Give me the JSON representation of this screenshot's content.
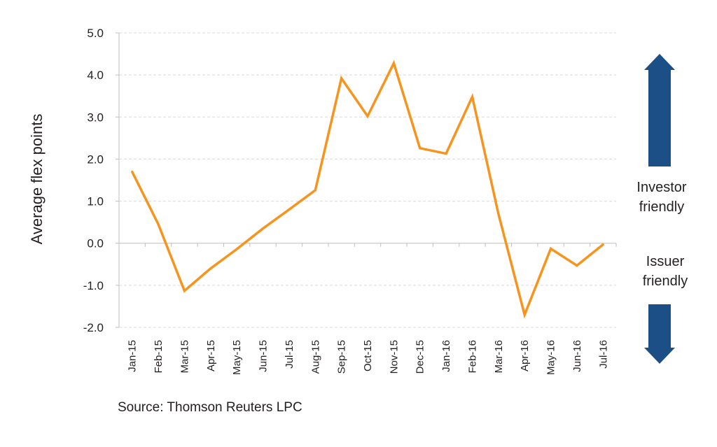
{
  "chart_data": {
    "type": "line",
    "categories": [
      "Jan-15",
      "Feb-15",
      "Mar-15",
      "Apr-15",
      "May-15",
      "Jun-15",
      "Jul-15",
      "Aug-15",
      "Sep-15",
      "Oct-15",
      "Nov-15",
      "Dec-15",
      "Jan-16",
      "Feb-16",
      "Mar-16",
      "Apr-16",
      "May-16",
      "Jun-16",
      "Jul-16"
    ],
    "series": [
      {
        "values": [
          1.7,
          0.45,
          -1.13,
          -0.6,
          -0.14,
          0.35,
          0.8,
          1.26,
          3.92,
          3.02,
          4.28,
          2.26,
          2.13,
          3.48,
          0.7,
          -1.7,
          -0.13,
          -0.53,
          -0.03
        ],
        "color": "#f7941d"
      }
    ],
    "ylabel": "Average flex points",
    "xlabel": "",
    "ylim": [
      -2.0,
      5.0
    ],
    "yticks": [
      "5.0",
      "4.0",
      "3.0",
      "2.0",
      "1.0",
      "0.0",
      "-1.0",
      "-2.0"
    ],
    "ytick_values": [
      5,
      4,
      3,
      2,
      1,
      0,
      -1,
      -2
    ],
    "grid": "horizontal-dashed",
    "source": "Source: Thomson Reuters LPC",
    "annotations": {
      "investor_friendly": [
        "Investor",
        "friendly"
      ],
      "issuer_friendly": [
        "Issuer",
        "friendly"
      ]
    },
    "arrow_color": "#1d4f87"
  }
}
